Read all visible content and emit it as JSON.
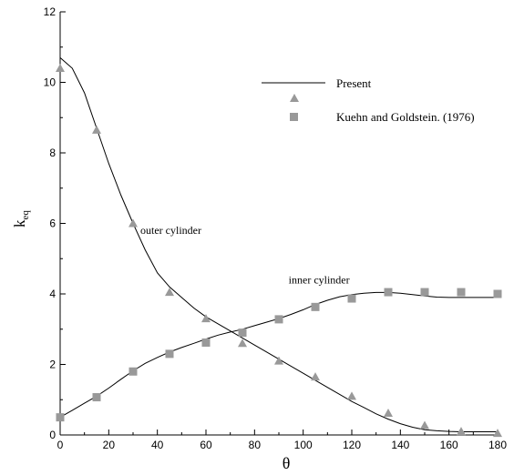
{
  "chart_data": {
    "type": "line",
    "xlabel": "θ",
    "ylabel_main": "k",
    "ylabel_sub": "eq",
    "xlim": [
      0,
      180
    ],
    "ylim": [
      0,
      12
    ],
    "x_ticks": [
      0,
      20,
      40,
      60,
      80,
      100,
      120,
      140,
      160,
      180
    ],
    "y_ticks": [
      0,
      2,
      4,
      6,
      8,
      10,
      12
    ],
    "grid": false,
    "legend_position": "top-right",
    "legend": [
      {
        "label": "Present",
        "marker": "line"
      },
      {
        "label": "",
        "marker": "triangle"
      },
      {
        "label": "Kuehn and Goldstein. (1976)",
        "marker": "square"
      }
    ],
    "annotations": [
      {
        "text": "outer cylinder",
        "x": 33,
        "y": 5.7
      },
      {
        "text": "inner cylinder",
        "x": 94,
        "y": 4.3
      }
    ],
    "series": [
      {
        "id": "outer-present",
        "kind": "line",
        "x": [
          0,
          5,
          10,
          15,
          20,
          25,
          30,
          35,
          40,
          45,
          50,
          55,
          60,
          65,
          70,
          75,
          80,
          85,
          90,
          95,
          100,
          105,
          110,
          115,
          120,
          125,
          130,
          135,
          140,
          145,
          150,
          155,
          160,
          165,
          170,
          175,
          180
        ],
        "y": [
          10.7,
          10.4,
          9.7,
          8.7,
          7.7,
          6.8,
          6.0,
          5.25,
          4.6,
          4.2,
          3.9,
          3.6,
          3.35,
          3.15,
          2.95,
          2.75,
          2.55,
          2.35,
          2.15,
          1.95,
          1.75,
          1.55,
          1.35,
          1.15,
          0.95,
          0.78,
          0.6,
          0.45,
          0.32,
          0.22,
          0.15,
          0.12,
          0.1,
          0.09,
          0.09,
          0.09,
          0.09
        ]
      },
      {
        "id": "inner-present",
        "kind": "line",
        "x": [
          0,
          5,
          10,
          15,
          20,
          25,
          30,
          35,
          40,
          45,
          50,
          55,
          60,
          65,
          70,
          75,
          80,
          85,
          90,
          95,
          100,
          105,
          110,
          115,
          120,
          125,
          130,
          135,
          140,
          145,
          150,
          155,
          160,
          165,
          170,
          175,
          180
        ],
        "y": [
          0.5,
          0.7,
          0.9,
          1.1,
          1.33,
          1.58,
          1.82,
          2.03,
          2.2,
          2.35,
          2.48,
          2.6,
          2.72,
          2.83,
          2.92,
          3.0,
          3.1,
          3.2,
          3.3,
          3.42,
          3.55,
          3.7,
          3.82,
          3.92,
          3.98,
          4.02,
          4.04,
          4.04,
          4.02,
          3.98,
          3.94,
          3.91,
          3.9,
          3.9,
          3.9,
          3.9,
          3.9
        ]
      },
      {
        "id": "outer-experiment",
        "kind": "triangle",
        "x": [
          0,
          15,
          30,
          45,
          60,
          75,
          90,
          105,
          120,
          135,
          150,
          165,
          180
        ],
        "y": [
          10.4,
          8.65,
          6.0,
          4.05,
          3.3,
          2.6,
          2.1,
          1.65,
          1.1,
          0.62,
          0.27,
          0.1,
          0.05
        ]
      },
      {
        "id": "inner-experiment",
        "kind": "square",
        "x": [
          0,
          15,
          30,
          45,
          60,
          75,
          90,
          105,
          120,
          135,
          150,
          165,
          180
        ],
        "y": [
          0.5,
          1.07,
          1.8,
          2.3,
          2.62,
          2.9,
          3.28,
          3.63,
          3.87,
          4.05,
          4.05,
          4.05,
          4.0
        ]
      }
    ]
  }
}
